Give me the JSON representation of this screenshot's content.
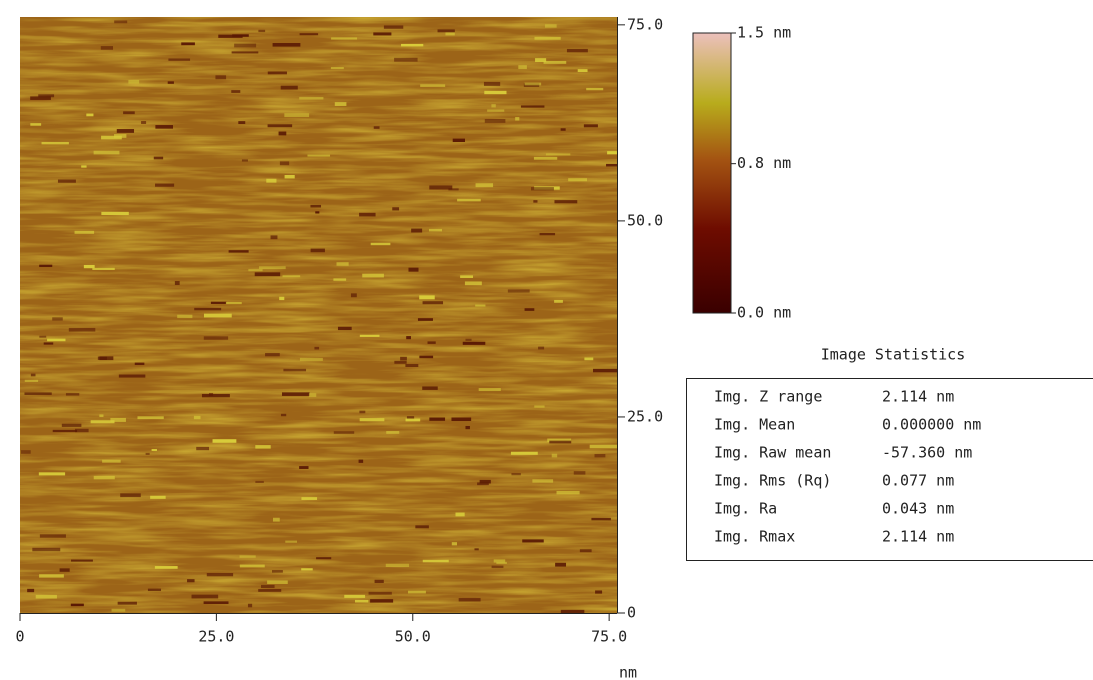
{
  "image": {
    "x_axis": {
      "range": [
        0,
        76
      ],
      "ticks": [
        0,
        {
          "value": 25,
          "label": "25.0"
        },
        {
          "value": 50,
          "label": "50.0"
        },
        {
          "value": 75,
          "label": "75.0"
        }
      ],
      "unit": "nm"
    },
    "y_axis": {
      "range": [
        0,
        76
      ],
      "ticks": [
        0,
        {
          "value": 25,
          "label": "25.0"
        },
        {
          "value": 50,
          "label": "50.0"
        },
        {
          "value": 75,
          "label": "75.0"
        }
      ]
    }
  },
  "colorbar": {
    "range": [
      0,
      1.5
    ],
    "ticks": [
      {
        "value": 1.5,
        "label": "1.5 nm"
      },
      {
        "value": 0.8,
        "label": "0.8 nm"
      },
      {
        "value": 0,
        "label": "0.0 nm"
      }
    ]
  },
  "statistics": {
    "title": "Image Statistics",
    "rows": [
      [
        "Img. Z range",
        "2.114 nm"
      ],
      [
        "Img. Mean",
        "0.000000 nm"
      ],
      [
        "Img. Raw mean",
        "-57.360 nm"
      ],
      [
        "Img. Rms (Rq)",
        "0.077 nm"
      ],
      [
        "Img. Ra",
        "0.043 nm"
      ],
      [
        "Img. Rmax",
        "2.114 nm"
      ]
    ]
  }
}
